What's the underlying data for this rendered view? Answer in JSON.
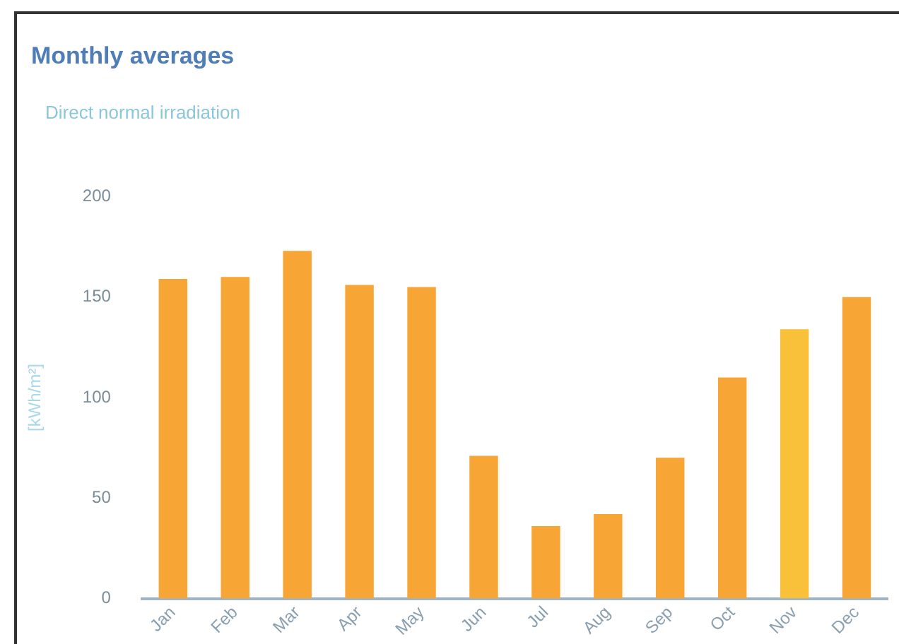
{
  "chart_data": {
    "type": "bar",
    "title": "Monthly averages",
    "subtitle": "Direct normal irradiation",
    "ylabel": "[kWh/m²]",
    "categories": [
      "Jan",
      "Feb",
      "Mar",
      "Apr",
      "May",
      "Jun",
      "Jul",
      "Aug",
      "Sep",
      "Oct",
      "Nov",
      "Dec"
    ],
    "values": [
      159,
      160,
      173,
      156,
      155,
      71,
      36,
      42,
      70,
      110,
      134,
      150
    ],
    "colors": [
      "#f7a535",
      "#f7a535",
      "#f7a535",
      "#f7a535",
      "#f7a535",
      "#f7a535",
      "#f7a535",
      "#f7a535",
      "#f7a535",
      "#f7a535",
      "#f9c03a",
      "#f7a535"
    ],
    "ylim": [
      0,
      200
    ],
    "yticks": [
      0,
      50,
      100,
      150,
      200
    ],
    "grid": false,
    "legend": false
  }
}
